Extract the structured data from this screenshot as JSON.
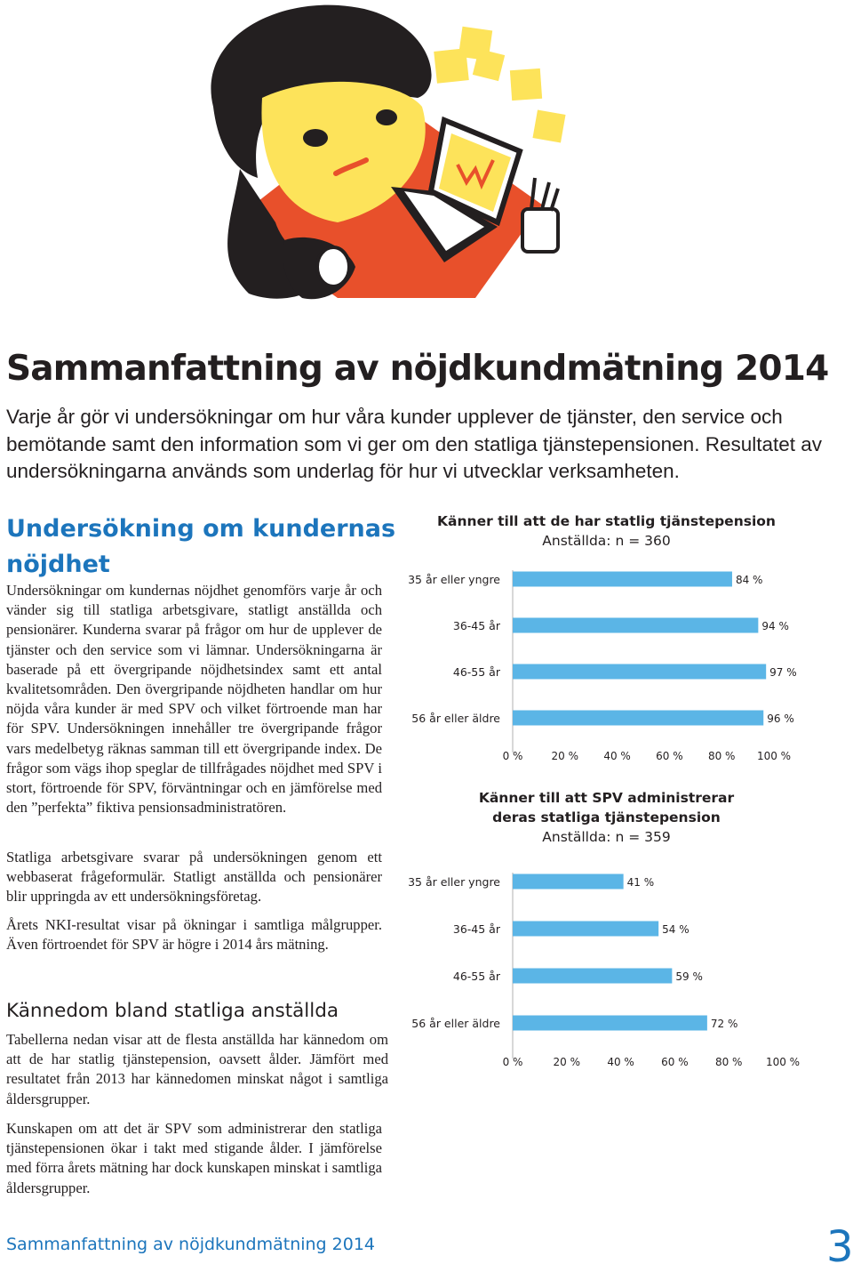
{
  "page": {
    "title": "Sammanfattning av nöjdkundmätning 2014",
    "intro": "Varje år gör vi undersökningar om hur våra kunder upplever de tjänster, den service och bemötande samt den information som vi ger om den statliga tjänstepensionen. Resultatet av undersökningarna används som underlag för hur vi utvecklar verksamheten.",
    "section1_heading": "Undersökning om kundernas nöjdhet",
    "section1_p1": "Undersökningar om kundernas nöjdhet genomförs varje år och vänder sig till statliga arbetsgivare, statligt anställda och pensionärer. Kunderna svarar på frågor om hur de upplever de tjänster och den service som vi lämnar. Undersökningarna är baserade på ett övergripande nöjdhetsindex samt ett antal kvalitetsområden. Den övergripande nöjdheten handlar om hur nöjda våra kunder är med SPV och vilket förtroende man har för SPV. Undersökningen innehåller tre övergripande frågor vars medelbetyg räknas samman till ett övergripande index. De frågor som vägs ihop speglar de tillfrågades nöjdhet med SPV i stort, förtroende för SPV, förväntningar och en jämförelse med den ”perfekta” fiktiva pensionsadministratören.",
    "section1_p2": "Statliga arbetsgivare svarar på undersökningen genom ett webbaserat frågeformulär. Statligt anställda och pensionärer blir uppringda av ett undersökningsföretag.",
    "section1_p3": "Årets NKI-resultat visar på ökningar i samtliga målgrupper. Även förtroendet för SPV är högre i 2014 års mätning.",
    "section2_heading": "Kännedom bland statliga anställda",
    "section2_p1": "Tabellerna nedan visar att de flesta anställda har kännedom om att de har statlig tjänstepension, oavsett ålder. Jämfört med resultatet från 2013 har kännedomen minskat något i samtliga åldersgrupper.",
    "section2_p2": "Kunskapen om att det är SPV som administrerar den statliga tjänstepensionen ökar i takt med stigande ålder. I jämförelse med förra årets mätning har dock kunskapen minskat i samtliga åldersgrupper.",
    "footer": "Sammanfattning av nöjdkundmätning 2014",
    "page_number": "3"
  },
  "colors": {
    "bar": "#5bb5e6",
    "heading_blue": "#1c75bc",
    "text": "#231f20"
  },
  "chart_data": [
    {
      "type": "bar",
      "orientation": "horizontal",
      "title": "Känner till att de har statlig tjänstepension",
      "subtitle": "Anställda: n = 360",
      "categories": [
        "35 år eller yngre",
        "36-45 år",
        "46-55 år",
        "56 år eller äldre"
      ],
      "values": [
        84,
        94,
        97,
        96
      ],
      "value_labels": [
        "84 %",
        "94 %",
        "97 %",
        "96 %"
      ],
      "xlim": [
        0,
        100
      ],
      "xticks": [
        "0 %",
        "20 %",
        "40 %",
        "60 %",
        "80 %",
        "100 %"
      ],
      "grid": false
    },
    {
      "type": "bar",
      "orientation": "horizontal",
      "title": "Känner till att SPV administrerar deras statliga tjänstepension",
      "subtitle": "Anställda: n = 359",
      "categories": [
        "35 år eller yngre",
        "36-45 år",
        "46-55 år",
        "56 år eller äldre"
      ],
      "values": [
        41,
        54,
        59,
        72
      ],
      "value_labels": [
        "41 %",
        "54 %",
        "59 %",
        "72 %"
      ],
      "xlim": [
        0,
        100
      ],
      "xticks": [
        "0 %",
        "20 %",
        "40 %",
        "60 %",
        "80 %",
        "100 %"
      ],
      "grid": false
    }
  ]
}
